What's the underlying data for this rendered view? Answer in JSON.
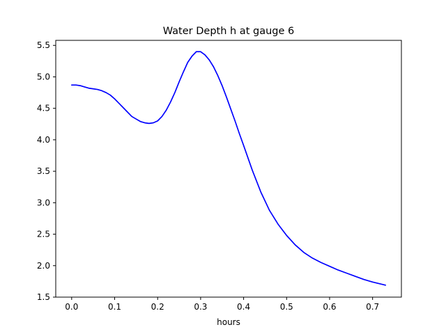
{
  "chart_data": {
    "type": "line",
    "title": "Water Depth h at gauge 6",
    "xlabel": "hours",
    "ylabel": "",
    "xlim": [
      -0.037,
      0.767
    ],
    "ylim": [
      1.5,
      5.58
    ],
    "xticks": [
      0.0,
      0.1,
      0.2,
      0.3,
      0.4,
      0.5,
      0.6,
      0.7
    ],
    "xtick_labels": [
      "0.0",
      "0.1",
      "0.2",
      "0.3",
      "0.4",
      "0.5",
      "0.6",
      "0.7"
    ],
    "yticks": [
      1.5,
      2.0,
      2.5,
      3.0,
      3.5,
      4.0,
      4.5,
      5.0,
      5.5
    ],
    "ytick_labels": [
      "1.5",
      "2.0",
      "2.5",
      "3.0",
      "3.5",
      "4.0",
      "4.5",
      "5.0",
      "5.5"
    ],
    "grid": false,
    "series": [
      {
        "color": "#0000ff",
        "x": [
          0.0,
          0.01,
          0.02,
          0.03,
          0.04,
          0.05,
          0.06,
          0.07,
          0.08,
          0.09,
          0.1,
          0.11,
          0.12,
          0.13,
          0.14,
          0.15,
          0.16,
          0.17,
          0.18,
          0.19,
          0.2,
          0.21,
          0.22,
          0.23,
          0.24,
          0.25,
          0.26,
          0.27,
          0.28,
          0.29,
          0.3,
          0.31,
          0.32,
          0.33,
          0.34,
          0.35,
          0.36,
          0.37,
          0.38,
          0.39,
          0.4,
          0.42,
          0.44,
          0.46,
          0.48,
          0.5,
          0.52,
          0.54,
          0.56,
          0.58,
          0.6,
          0.62,
          0.64,
          0.66,
          0.68,
          0.7,
          0.73
        ],
        "y": [
          4.87,
          4.87,
          4.86,
          4.84,
          4.82,
          4.81,
          4.8,
          4.78,
          4.75,
          4.71,
          4.65,
          4.58,
          4.51,
          4.44,
          4.37,
          4.33,
          4.29,
          4.27,
          4.26,
          4.27,
          4.3,
          4.37,
          4.47,
          4.6,
          4.75,
          4.92,
          5.08,
          5.23,
          5.33,
          5.4,
          5.4,
          5.35,
          5.27,
          5.16,
          5.02,
          4.86,
          4.68,
          4.49,
          4.3,
          4.1,
          3.91,
          3.52,
          3.17,
          2.88,
          2.66,
          2.48,
          2.33,
          2.21,
          2.12,
          2.05,
          1.99,
          1.93,
          1.88,
          1.83,
          1.78,
          1.74,
          1.69
        ]
      }
    ]
  }
}
